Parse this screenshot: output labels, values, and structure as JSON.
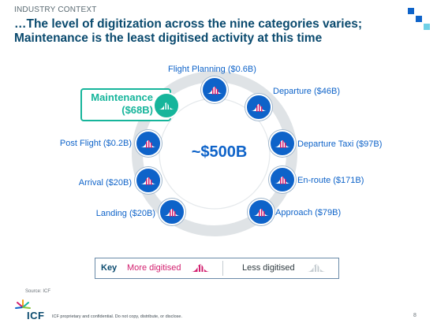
{
  "header": {
    "section": "INDUSTRY CONTEXT",
    "title_line1": "…The level of digitization across the nine categories varies;",
    "title_line2": "Maintenance is the least digitised activity at this time"
  },
  "diagram": {
    "center_total": "~$500B",
    "nodes": [
      {
        "id": "flight-planning",
        "label": "Flight Planning ($0.6B)"
      },
      {
        "id": "departure",
        "label": "Departure ($46B)"
      },
      {
        "id": "departure-taxi",
        "label": "Departure Taxi ($97B)"
      },
      {
        "id": "en-route",
        "label": "En-route ($171B)"
      },
      {
        "id": "approach",
        "label": "Approach ($79B)"
      },
      {
        "id": "landing",
        "label": "Landing ($20B)"
      },
      {
        "id": "arrival",
        "label": "Arrival ($20B)"
      },
      {
        "id": "post-flight",
        "label": "Post Flight ($0.2B)"
      },
      {
        "id": "maintenance",
        "label_line1": "Maintenance",
        "label_line2": "($68B)",
        "highlighted": true
      }
    ]
  },
  "key": {
    "title": "Key",
    "more": "More digitised",
    "less": "Less digitised"
  },
  "footer": {
    "source": "Source: ICF",
    "confidential": "ICF proprietary and confidential. Do not copy, distribute, or disclose.",
    "page": "8",
    "logo": "ICF"
  },
  "colors": {
    "accent_blue": "#0e63c9",
    "title_navy": "#0a4a6e",
    "highlight_teal": "#16b59b",
    "more_digitised": "#d21e6e",
    "less_digitised": "#c6cdd2"
  }
}
